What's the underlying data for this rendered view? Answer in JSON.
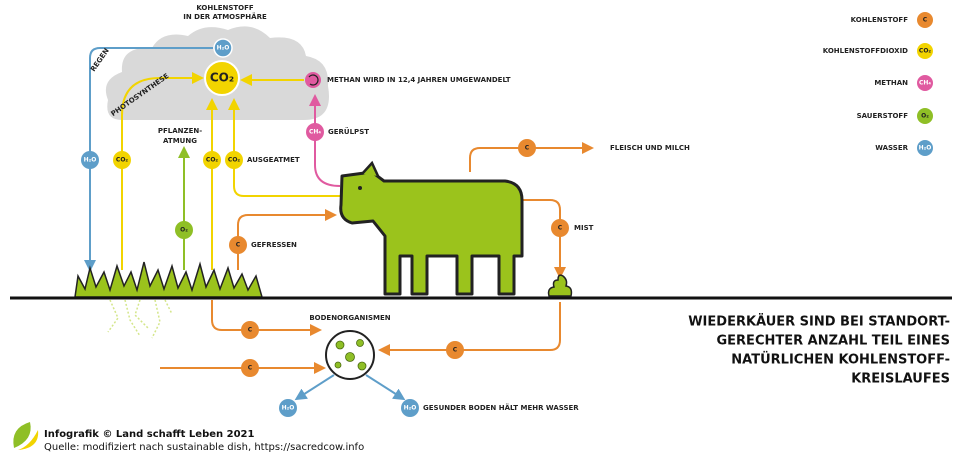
{
  "atmosphere": {
    "title_lines": [
      "KOHLENSTOFF",
      "IN DER ATMOSPHÄRE"
    ],
    "water_symbol": "H₂O",
    "co2_symbol": "CO₂"
  },
  "flows": [
    {
      "label": "REGEN",
      "symbol": "H₂O"
    },
    {
      "label": "PHOTOSYNTHESE",
      "symbol": "CO₂"
    },
    {
      "label_lines": [
        "PFLANZEN-",
        "ATMUNG"
      ],
      "symbol": "O₂"
    },
    {
      "symbol": "CO₂"
    },
    {
      "symbol": "CO₂",
      "label": "AUSGEATMET"
    },
    {
      "symbol": "CH₄",
      "label": "GERÜLPST"
    },
    {
      "label": "METHAN WIRD IN 12,4 JAHREN UMGEWANDELT"
    },
    {
      "symbol": "C",
      "label": "FLEISCH UND MILCH"
    },
    {
      "symbol": "C",
      "label": "MIST"
    },
    {
      "symbol": "C",
      "label": "GEFRESSEN"
    },
    {
      "symbol": "C"
    },
    {
      "symbol": "C"
    },
    {
      "symbol": "C"
    },
    {
      "symbol": "H₂O"
    },
    {
      "symbol": "H₂O",
      "label": "GESUNDER BODEN HÄLT MEHR WASSER"
    }
  ],
  "soil": {
    "label": "BODENORGANISMEN"
  },
  "legend": [
    {
      "label": "KOHLENSTOFF",
      "symbol": "C"
    },
    {
      "label": "KOHLENSTOFFDIOXID",
      "symbol": "CO₂"
    },
    {
      "label": "METHAN",
      "symbol": "CH₄"
    },
    {
      "label": "SAUERSTOFF",
      "symbol": "O₂"
    },
    {
      "label": "WASSER",
      "symbol": "H₂O"
    }
  ],
  "headline": [
    "WIEDERKÄUER SIND BEI STANDORT-",
    "GERECHTER ANZAHL TEIL EINES",
    "NATÜRLICHEN KOHLENSTOFF-",
    "KREISLAUFES"
  ],
  "footer": {
    "credit": "Infografik © Land schafft Leben 2021",
    "source": "Quelle: modifiziert nach sustainable dish, https://sacredcow.info"
  }
}
